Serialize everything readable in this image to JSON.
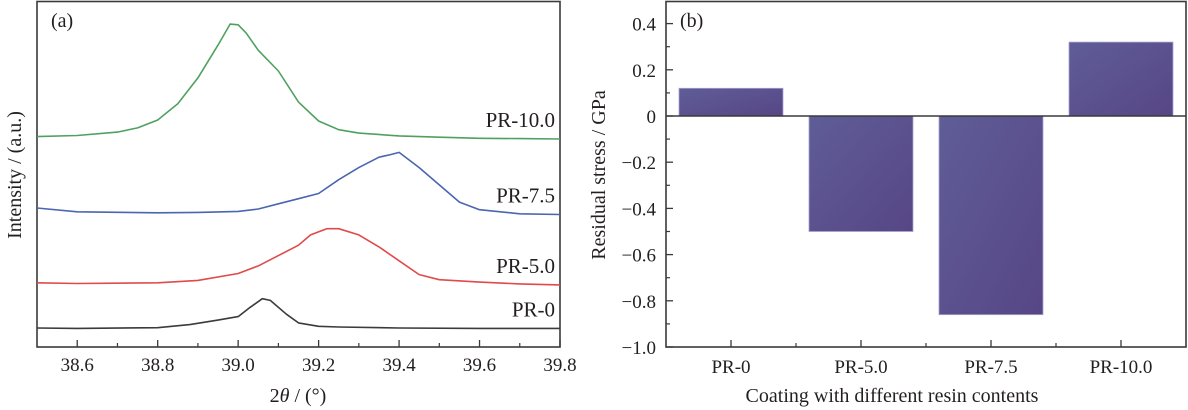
{
  "chart_data": [
    {
      "type": "line",
      "panel_label": "(a)",
      "xlabel_prefix": "2",
      "xlabel_symbol": "θ",
      "xlabel_suffix": " / (°)",
      "ylabel": "Intensity / (a.u.)",
      "xlim": [
        38.5,
        39.8
      ],
      "ylim": [
        0,
        100
      ],
      "xticks": [
        38.6,
        38.8,
        39.0,
        39.2,
        39.4,
        39.6,
        39.8
      ],
      "xtick_labels": [
        "38.6",
        "38.8",
        "39.0",
        "39.2",
        "39.4",
        "39.6",
        "39.8"
      ],
      "minor_xticks": [
        38.7,
        38.9,
        39.1,
        39.3,
        39.5,
        39.7
      ],
      "yticks_shown": false,
      "grid": false,
      "legend": "inline labels at right of each curve",
      "series": [
        {
          "name": "PR-10.0",
          "color": "#4fa160",
          "x": [
            38.5,
            38.6,
            38.7,
            38.75,
            38.8,
            38.85,
            38.9,
            38.95,
            38.98,
            39.0,
            39.02,
            39.05,
            39.1,
            39.15,
            39.2,
            39.25,
            39.3,
            39.4,
            39.5,
            39.6,
            39.7,
            39.8
          ],
          "y": [
            61.0,
            61.3,
            62.3,
            63.5,
            65.8,
            70.5,
            78.0,
            87.5,
            93.6,
            93.4,
            91.0,
            86.0,
            80.0,
            71.0,
            65.5,
            63.0,
            62.0,
            61.2,
            60.8,
            60.5,
            60.4,
            60.3
          ]
        },
        {
          "name": "PR-7.5",
          "color": "#4a66b0",
          "x": [
            38.5,
            38.6,
            38.8,
            38.9,
            39.0,
            39.05,
            39.1,
            39.15,
            39.2,
            39.25,
            39.3,
            39.35,
            39.38,
            39.4,
            39.45,
            39.5,
            39.55,
            39.6,
            39.7,
            39.8
          ],
          "y": [
            40.3,
            39.2,
            38.9,
            39.0,
            39.3,
            40.0,
            41.5,
            43.0,
            44.5,
            48.5,
            52.0,
            55.0,
            55.8,
            56.4,
            52.0,
            47.0,
            42.0,
            39.8,
            38.6,
            38.4
          ]
        },
        {
          "name": "PR-5.0",
          "color": "#e04a4a",
          "x": [
            38.5,
            38.6,
            38.8,
            38.9,
            39.0,
            39.05,
            39.1,
            39.15,
            39.18,
            39.22,
            39.25,
            39.3,
            39.35,
            39.4,
            39.45,
            39.5,
            39.6,
            39.7,
            39.8
          ],
          "y": [
            18.6,
            18.4,
            18.6,
            19.3,
            21.3,
            23.5,
            26.5,
            29.5,
            32.5,
            34.3,
            34.3,
            32.5,
            29.0,
            25.0,
            21.0,
            19.5,
            18.8,
            18.3,
            18.0
          ]
        },
        {
          "name": "PR-0",
          "color": "#3d3a38",
          "x": [
            38.5,
            38.6,
            38.8,
            38.88,
            38.95,
            39.0,
            39.03,
            39.06,
            39.08,
            39.12,
            39.15,
            39.2,
            39.25,
            39.4,
            39.6,
            39.8
          ],
          "y": [
            5.5,
            5.4,
            5.6,
            6.5,
            7.8,
            8.8,
            11.5,
            14.0,
            13.5,
            9.5,
            7.0,
            6.0,
            5.8,
            5.5,
            5.4,
            5.4
          ]
        }
      ]
    },
    {
      "type": "bar",
      "panel_label": "(b)",
      "title": "",
      "xlabel": "Coating with different resin contents",
      "ylabel": "Residual stress / GPa",
      "categories": [
        "PR-0",
        "PR-5.0",
        "PR-7.5",
        "PR-10.0"
      ],
      "values": [
        0.12,
        -0.5,
        -0.86,
        0.32
      ],
      "ylim": [
        -1.0,
        0.5
      ],
      "yticks": [
        0.4,
        0.2,
        0,
        -0.2,
        -0.4,
        -0.6,
        -0.8,
        -1.0
      ],
      "ytick_labels": [
        "0.4",
        "0.2",
        "0",
        "−0.2",
        "−0.4",
        "−0.6",
        "−0.8",
        "−1.0"
      ],
      "bar_color": "#5a5392",
      "grid": false,
      "zero_line": true
    }
  ]
}
